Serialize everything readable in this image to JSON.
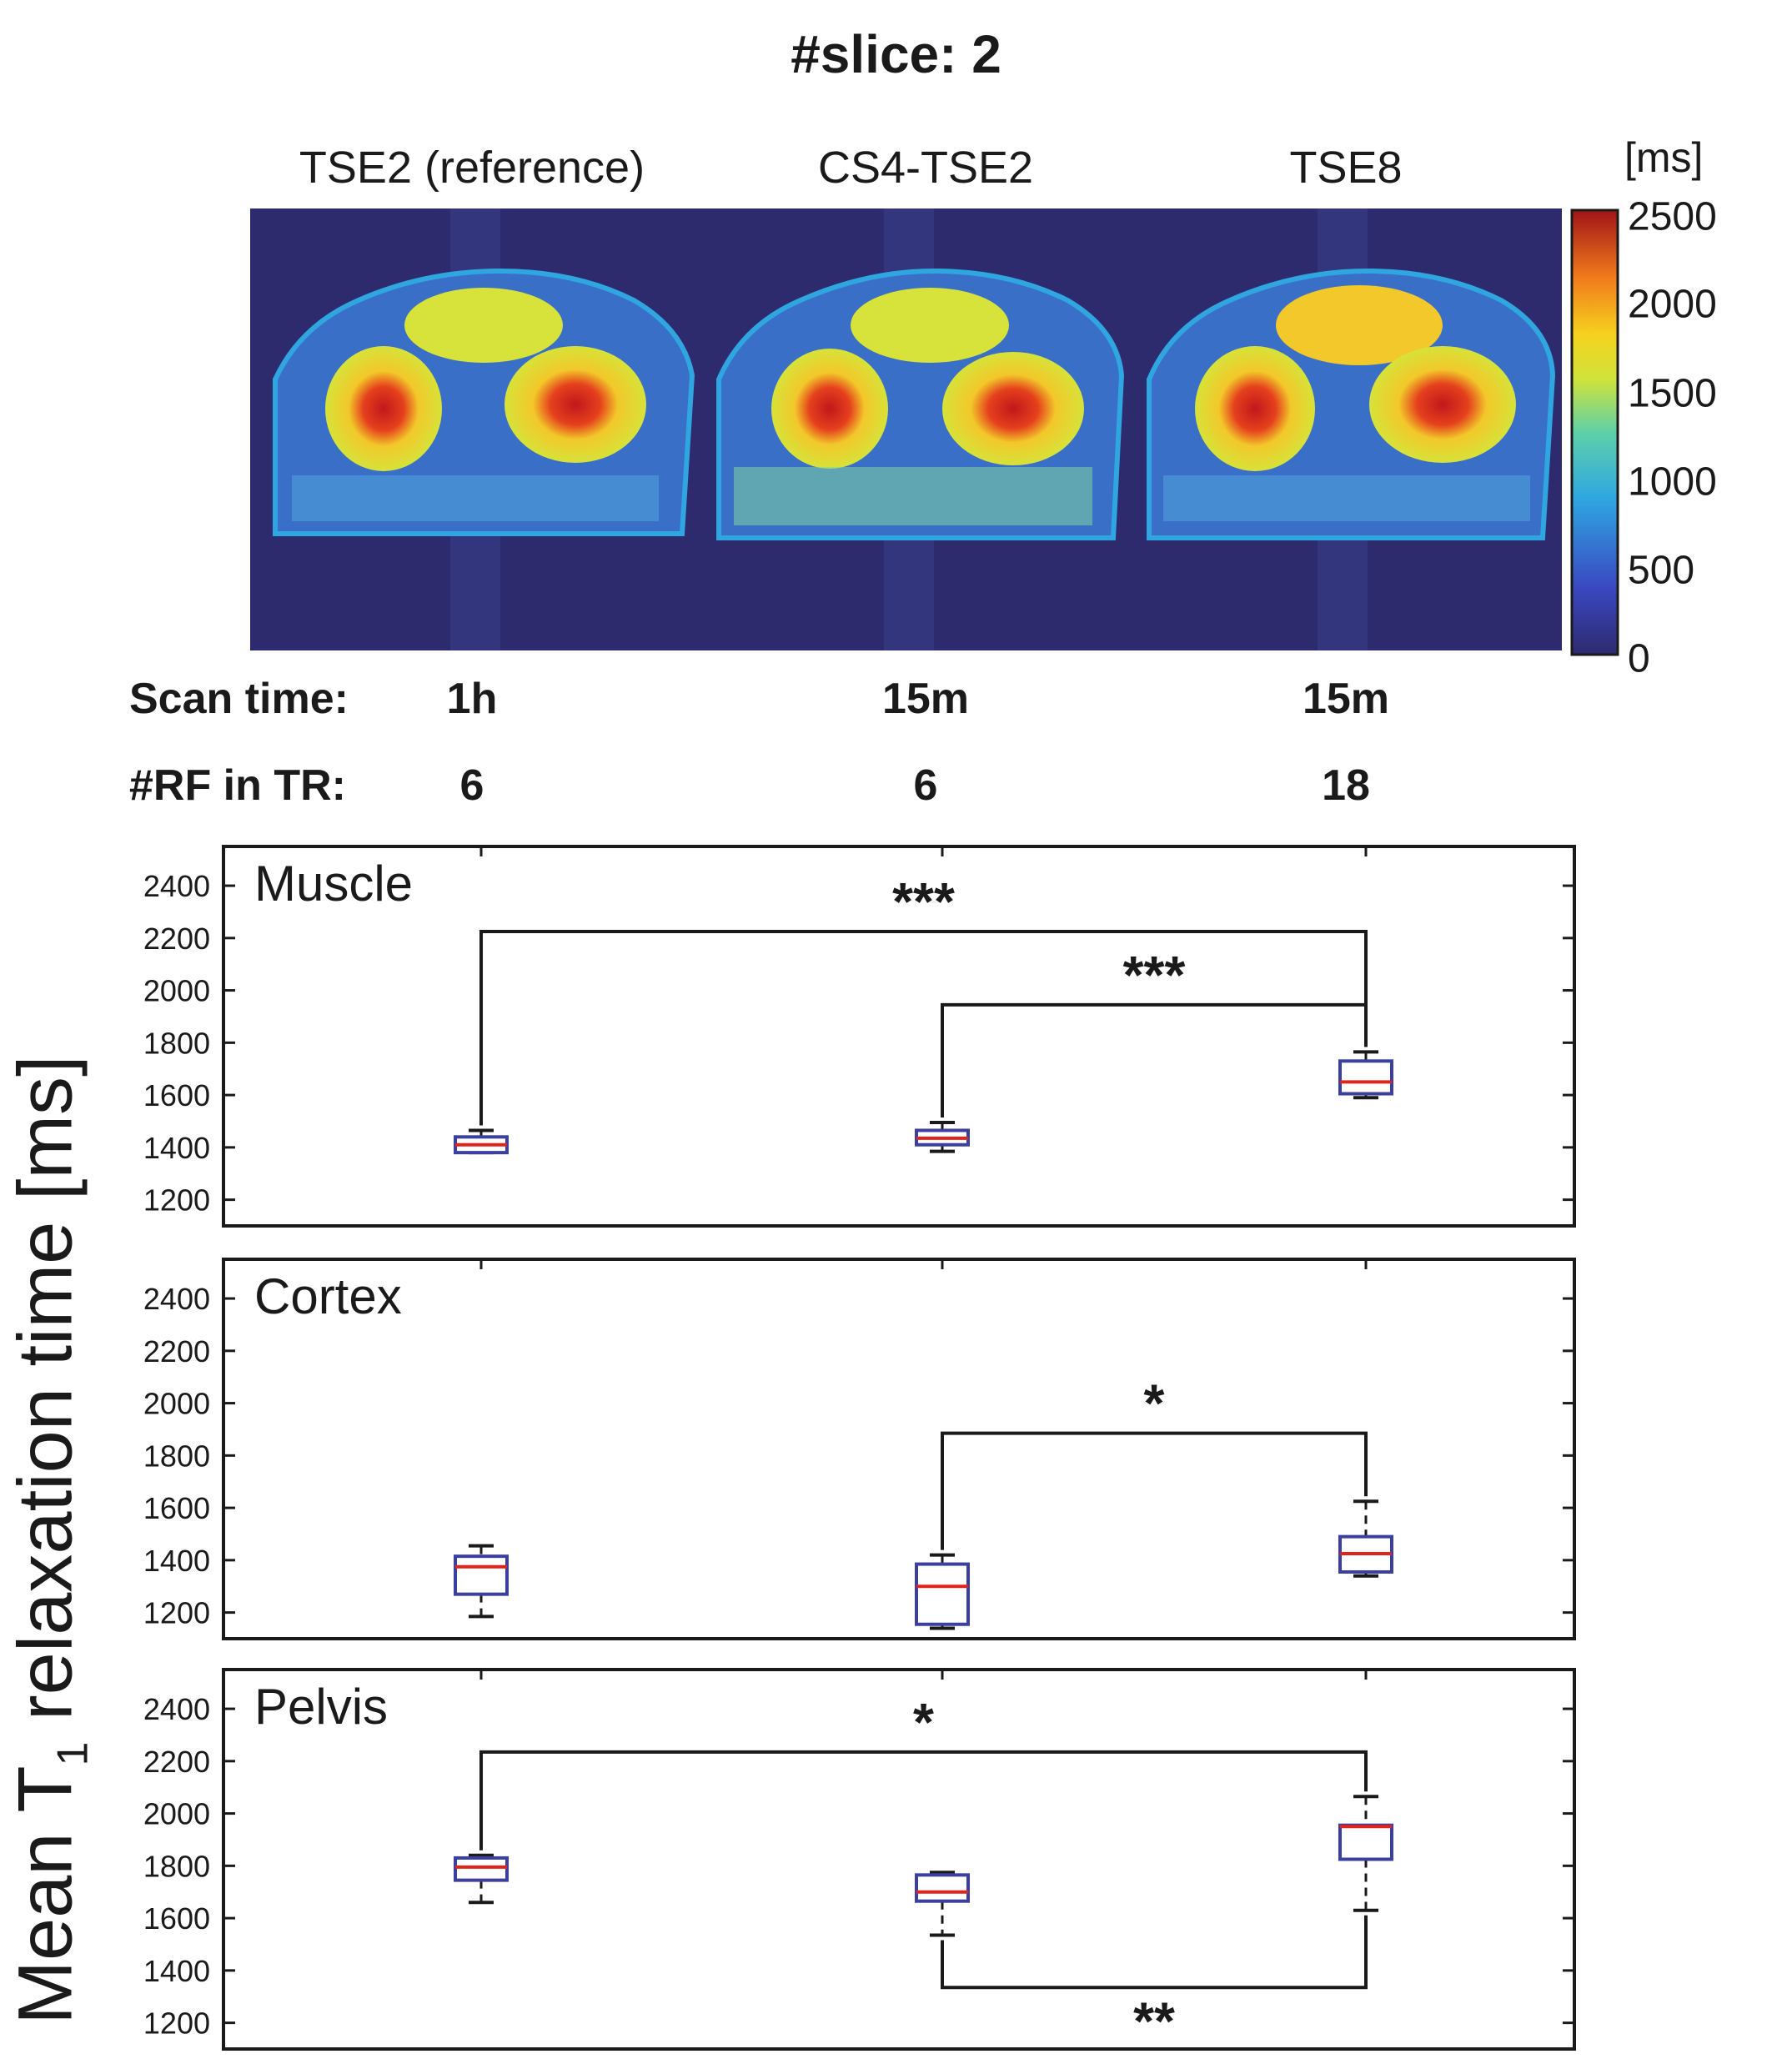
{
  "figure_title": "#slice: 2",
  "colorbar": {
    "unit": "[ms]",
    "ticks": [
      "2500",
      "2000",
      "1500",
      "1000",
      "500",
      "0"
    ]
  },
  "methods": [
    "TSE2 (reference)",
    "CS4-TSE2",
    "TSE8"
  ],
  "scan_time": {
    "label": "Scan time:",
    "values": [
      "1h",
      "15m",
      "15m"
    ]
  },
  "rf_in_tr": {
    "label": "#RF in TR:",
    "values": [
      "6",
      "6",
      "18"
    ]
  },
  "ylabel_main": "Mean T",
  "ylabel_sub": "1",
  "ylabel_rest": " relaxation time [ms]",
  "colors": {
    "box": "#3b3f9e",
    "median": "#e0241b",
    "background": "#2e2a6e"
  },
  "chart_data": [
    {
      "type": "box",
      "title": "Muscle",
      "categories": [
        "TSE2 (reference)",
        "CS4-TSE2",
        "TSE8"
      ],
      "ylim": [
        1100,
        2550
      ],
      "yticks": [
        1200,
        1400,
        1600,
        1800,
        2000,
        2200,
        2400
      ],
      "boxes": [
        {
          "min": 1380,
          "q1": 1380,
          "median": 1410,
          "q3": 1440,
          "max": 1465
        },
        {
          "min": 1385,
          "q1": 1410,
          "median": 1435,
          "q3": 1465,
          "max": 1495
        },
        {
          "min": 1590,
          "q1": 1605,
          "median": 1650,
          "q3": 1730,
          "max": 1765
        }
      ],
      "significance": [
        {
          "from": 0,
          "to": 2,
          "label": "***",
          "level": 2225,
          "side": "top"
        },
        {
          "from": 1,
          "to": 2,
          "label": "***",
          "level": 1945,
          "side": "top"
        }
      ]
    },
    {
      "type": "box",
      "title": "Cortex",
      "categories": [
        "TSE2 (reference)",
        "CS4-TSE2",
        "TSE8"
      ],
      "ylim": [
        1100,
        2550
      ],
      "yticks": [
        1200,
        1400,
        1600,
        1800,
        2000,
        2200,
        2400
      ],
      "boxes": [
        {
          "min": 1185,
          "q1": 1270,
          "median": 1375,
          "q3": 1415,
          "max": 1455
        },
        {
          "min": 1140,
          "q1": 1155,
          "median": 1300,
          "q3": 1385,
          "max": 1420
        },
        {
          "min": 1340,
          "q1": 1355,
          "median": 1425,
          "q3": 1490,
          "max": 1625
        }
      ],
      "significance": [
        {
          "from": 1,
          "to": 2,
          "label": "*",
          "level": 1885,
          "side": "top"
        }
      ]
    },
    {
      "type": "box",
      "title": "Pelvis",
      "categories": [
        "TSE2 (reference)",
        "CS4-TSE2",
        "TSE8"
      ],
      "ylim": [
        1100,
        2550
      ],
      "yticks": [
        1200,
        1400,
        1600,
        1800,
        2000,
        2200,
        2400
      ],
      "boxes": [
        {
          "min": 1660,
          "q1": 1745,
          "median": 1795,
          "q3": 1830,
          "max": 1840
        },
        {
          "min": 1535,
          "q1": 1665,
          "median": 1700,
          "q3": 1765,
          "max": 1775
        },
        {
          "min": 1630,
          "q1": 1825,
          "median": 1950,
          "q3": 1955,
          "max": 2065
        }
      ],
      "significance": [
        {
          "from": 0,
          "to": 2,
          "label": "*",
          "level": 2235,
          "side": "top"
        },
        {
          "from": 1,
          "to": 2,
          "label": "**",
          "level": 1335,
          "side": "bottom"
        }
      ]
    }
  ]
}
